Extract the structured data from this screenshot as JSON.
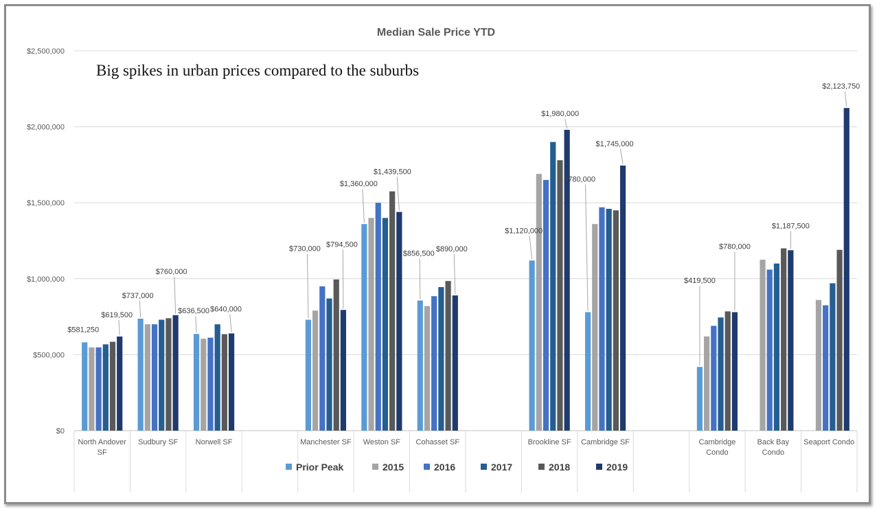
{
  "chart_data": {
    "type": "bar",
    "title": "Median Sale Price YTD",
    "annotation": "Big spikes in urban prices compared to  the suburbs",
    "ylim": [
      0,
      2500000
    ],
    "yticks": [
      "$0",
      "$500,000",
      "$1,000,000",
      "$1,500,000",
      "$2,000,000",
      "$2,500,000"
    ],
    "ytick_values": [
      0,
      500000,
      1000000,
      1500000,
      2000000,
      2500000
    ],
    "grid": true,
    "legend_position": "bottom",
    "categories": [
      "North Andover SF",
      "Sudbury SF",
      "Norwell SF",
      "",
      "Manchester SF",
      "Weston SF",
      "Cohasset SF",
      "",
      "Brookline SF",
      "Cambridge SF",
      "",
      "Cambridge Condo",
      "Back Bay Condo",
      "Seaport Condo"
    ],
    "category_lines": [
      [
        "North Andover",
        "SF"
      ],
      [
        "Sudbury SF"
      ],
      [
        "Norwell SF"
      ],
      [],
      [
        "Manchester SF"
      ],
      [
        "Weston SF"
      ],
      [
        "Cohasset SF"
      ],
      [],
      [
        "Brookline SF"
      ],
      [
        "Cambridge SF"
      ],
      [],
      [
        "Cambridge",
        "Condo"
      ],
      [
        "Back Bay",
        "Condo"
      ],
      [
        "Seaport Condo"
      ]
    ],
    "series": [
      {
        "name": "Prior Peak",
        "color": "#5b9bd5",
        "values": [
          581250,
          737000,
          636500,
          null,
          730000,
          1360000,
          856500,
          null,
          1120000,
          780000,
          null,
          419500,
          null,
          null
        ]
      },
      {
        "name": "2015",
        "color": "#a5a5a5",
        "values": [
          548000,
          700000,
          605000,
          null,
          790000,
          1400000,
          820000,
          null,
          1690000,
          1360000,
          null,
          620000,
          1125000,
          860000
        ]
      },
      {
        "name": "2016",
        "color": "#4472c4",
        "values": [
          548000,
          700000,
          612000,
          null,
          950000,
          1500000,
          885000,
          null,
          1650000,
          1470000,
          null,
          690000,
          1060000,
          825000
        ]
      },
      {
        "name": "2017",
        "color": "#255e91",
        "values": [
          568000,
          730000,
          700000,
          null,
          870000,
          1400000,
          945000,
          null,
          1900000,
          1460000,
          null,
          745000,
          1100000,
          970000
        ]
      },
      {
        "name": "2018",
        "color": "#595959",
        "values": [
          585000,
          740000,
          635000,
          null,
          995000,
          1575000,
          985000,
          null,
          1780000,
          1450000,
          null,
          785000,
          1200000,
          1190000
        ]
      },
      {
        "name": "2019",
        "color": "#1f3b6e",
        "values": [
          619500,
          760000,
          640000,
          null,
          794500,
          1439500,
          890000,
          null,
          1980000,
          1745000,
          null,
          780000,
          1187500,
          2123750
        ]
      }
    ],
    "data_labels": [
      {
        "text": "$581,250",
        "cat": 0,
        "series": 0
      },
      {
        "text": "$619,500",
        "cat": 0,
        "series": 5
      },
      {
        "text": "$737,000",
        "cat": 1,
        "series": 0
      },
      {
        "text": "$760,000",
        "cat": 1,
        "series": 5
      },
      {
        "text": "$636,500",
        "cat": 2,
        "series": 0
      },
      {
        "text": "$640,000",
        "cat": 2,
        "series": 5
      },
      {
        "text": "$730,000",
        "cat": 4,
        "series": 0
      },
      {
        "text": "$794,500",
        "cat": 4,
        "series": 5
      },
      {
        "text": "$1,360,000",
        "cat": 5,
        "series": 0
      },
      {
        "text": "$1,439,500",
        "cat": 5,
        "series": 5
      },
      {
        "text": "$856,500",
        "cat": 6,
        "series": 0
      },
      {
        "text": "$890,000",
        "cat": 6,
        "series": 5
      },
      {
        "text": "$1,120,000",
        "cat": 8,
        "series": 0
      },
      {
        "text": "$1,980,000",
        "cat": 8,
        "series": 5
      },
      {
        "text": "$780,000",
        "cat": 9,
        "series": 0
      },
      {
        "text": "$1,745,000",
        "cat": 9,
        "series": 5
      },
      {
        "text": "$419,500",
        "cat": 11,
        "series": 0
      },
      {
        "text": "$780,000",
        "cat": 11,
        "series": 5
      },
      {
        "text": "$1,187,500",
        "cat": 12,
        "series": 5
      },
      {
        "text": "$2,123,750",
        "cat": 13,
        "series": 5
      }
    ]
  }
}
